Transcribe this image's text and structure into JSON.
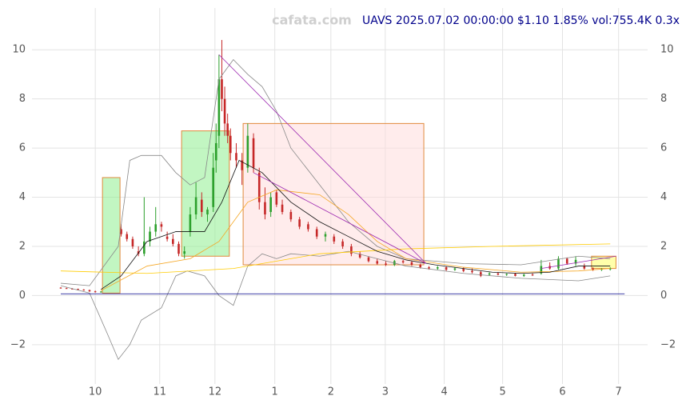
{
  "chart_data": {
    "type": "candlestick",
    "title": "UAVS 2025.07.02 00:00:00 $1.10 1.85% vol:755.4K 0.3x",
    "watermark": "cafata.com",
    "up_color": "#2ca02c",
    "down_color": "#c62828",
    "grid": true,
    "xlim": [
      -10,
      204
    ],
    "ylim": [
      -3.6,
      11.7
    ],
    "yticks": [
      {
        "value": -2,
        "label": "−2"
      },
      0,
      2,
      4,
      6,
      8,
      10
    ],
    "xticks": [
      {
        "value": 12,
        "label": "10"
      },
      {
        "value": 34.4,
        "label": "11"
      },
      {
        "value": 53.6,
        "label": "12"
      },
      {
        "value": 74.4,
        "label": "1"
      },
      {
        "value": 93.9,
        "label": "2"
      },
      {
        "value": 112.8,
        "label": "3"
      },
      {
        "value": 133.3,
        "label": "4"
      },
      {
        "value": 153.6,
        "label": "5"
      },
      {
        "value": 174.4,
        "label": "6"
      },
      {
        "value": 193.9,
        "label": "7"
      }
    ],
    "x": [
      0,
      2,
      4,
      6,
      8,
      10,
      12,
      14,
      21,
      23,
      25,
      27,
      29,
      31,
      33,
      35,
      37,
      39,
      41,
      43,
      45,
      47,
      49,
      51,
      53,
      54,
      55,
      56,
      57,
      58,
      59,
      61,
      63,
      65,
      67,
      69,
      71,
      73,
      75,
      77,
      80,
      83,
      86,
      89,
      92,
      95,
      98,
      101,
      104,
      107,
      110,
      113,
      116,
      119,
      122,
      125,
      128,
      131,
      134,
      137,
      140,
      143,
      146,
      149,
      152,
      155,
      158,
      161,
      164,
      167,
      170,
      173,
      176,
      179,
      182,
      185,
      188,
      191
    ],
    "open": [
      0.32,
      0.3,
      0.28,
      0.27,
      0.24,
      0.22,
      0.17,
      0.15,
      2.7,
      2.5,
      2.3,
      1.8,
      1.7,
      2.2,
      2.6,
      2.9,
      2.4,
      2.3,
      2.1,
      1.7,
      2.6,
      3.3,
      3.9,
      3.3,
      3.6,
      5.5,
      6.5,
      8.8,
      8.0,
      7.0,
      6.5,
      5.8,
      5.5,
      5.2,
      6.4,
      5.0,
      3.8,
      3.4,
      4.2,
      3.7,
      3.4,
      3.1,
      2.9,
      2.7,
      2.4,
      2.4,
      2.2,
      2.0,
      1.7,
      1.55,
      1.4,
      1.3,
      1.25,
      1.4,
      1.35,
      1.25,
      1.15,
      1.1,
      1.15,
      1.05,
      1.1,
      1.0,
      0.95,
      0.85,
      0.9,
      0.85,
      0.88,
      0.8,
      0.85,
      0.9,
      1.2,
      1.1,
      1.5,
      1.3,
      1.2,
      1.1,
      1.05,
      1.08
    ],
    "high": [
      0.34,
      0.32,
      0.3,
      0.28,
      0.26,
      0.24,
      0.2,
      0.18,
      2.9,
      2.6,
      2.4,
      2.0,
      4.0,
      2.8,
      3.6,
      3.0,
      2.6,
      2.5,
      2.2,
      2.0,
      3.6,
      4.6,
      4.2,
      3.6,
      5.8,
      7.0,
      9.8,
      10.4,
      8.5,
      7.4,
      6.8,
      6.2,
      5.8,
      7.0,
      6.6,
      5.2,
      4.4,
      4.2,
      4.3,
      3.9,
      3.5,
      3.2,
      3.0,
      2.8,
      2.6,
      2.5,
      2.3,
      2.1,
      1.8,
      1.6,
      1.5,
      1.4,
      1.45,
      1.45,
      1.4,
      1.3,
      1.2,
      1.2,
      1.2,
      1.15,
      1.15,
      1.1,
      1.0,
      0.95,
      0.95,
      0.9,
      0.92,
      0.88,
      0.9,
      1.45,
      1.35,
      1.6,
      1.55,
      1.6,
      1.3,
      1.15,
      1.12,
      1.15
    ],
    "low": [
      0.28,
      0.27,
      0.25,
      0.22,
      0.2,
      0.15,
      0.12,
      0.12,
      2.4,
      2.2,
      1.9,
      1.6,
      1.6,
      2.0,
      2.4,
      2.6,
      2.2,
      2.0,
      1.6,
      1.5,
      2.4,
      3.1,
      3.2,
      3.0,
      3.4,
      5.0,
      6.0,
      7.5,
      6.5,
      6.2,
      5.5,
      5.2,
      4.5,
      5.0,
      5.0,
      3.5,
      3.1,
      3.2,
      3.6,
      3.3,
      3.0,
      2.7,
      2.6,
      2.3,
      2.2,
      2.1,
      1.9,
      1.6,
      1.5,
      1.35,
      1.25,
      1.2,
      1.2,
      1.3,
      1.2,
      1.1,
      1.05,
      1.05,
      1.0,
      1.0,
      0.95,
      0.9,
      0.75,
      0.8,
      0.82,
      0.8,
      0.78,
      0.76,
      0.8,
      0.85,
      1.05,
      1.05,
      1.25,
      1.2,
      1.05,
      1.0,
      1.0,
      1.02
    ],
    "close": [
      0.3,
      0.28,
      0.27,
      0.24,
      0.22,
      0.17,
      0.15,
      0.16,
      2.5,
      2.3,
      2.0,
      1.7,
      2.2,
      2.6,
      2.9,
      2.8,
      2.3,
      2.1,
      1.7,
      1.8,
      3.3,
      4.0,
      3.4,
      3.5,
      5.2,
      6.2,
      8.8,
      8.0,
      7.0,
      6.5,
      5.8,
      5.5,
      5.1,
      6.5,
      5.2,
      3.8,
      3.3,
      4.0,
      3.7,
      3.4,
      3.1,
      2.8,
      2.7,
      2.4,
      2.5,
      2.2,
      2.0,
      1.7,
      1.55,
      1.4,
      1.3,
      1.25,
      1.4,
      1.35,
      1.25,
      1.15,
      1.1,
      1.15,
      1.05,
      1.1,
      1.0,
      0.95,
      0.8,
      0.9,
      0.85,
      0.88,
      0.8,
      0.85,
      0.82,
      1.2,
      1.1,
      1.5,
      1.3,
      1.45,
      1.1,
      1.05,
      1.08,
      1.1
    ],
    "overlays": [
      {
        "color": "#888888",
        "x": [
          0,
          10,
          20,
          24,
          28,
          35,
          40,
          45,
          50,
          55,
          60,
          65,
          70,
          75,
          80,
          90,
          100,
          110,
          120,
          140,
          160,
          180,
          191
        ],
        "values": [
          0.5,
          0.4,
          2.0,
          5.5,
          5.7,
          5.7,
          5.0,
          4.5,
          4.8,
          8.8,
          9.6,
          9.0,
          8.5,
          7.5,
          6.0,
          4.5,
          3.0,
          2.0,
          1.5,
          1.3,
          1.25,
          1.6,
          1.5
        ]
      },
      {
        "color": "#888888",
        "x": [
          0,
          10,
          16,
          20,
          24,
          28,
          35,
          40,
          44,
          50,
          55,
          60,
          65,
          70,
          75,
          80,
          90,
          100,
          110,
          120,
          140,
          160,
          180,
          191
        ],
        "values": [
          0.4,
          0.1,
          -1.5,
          -2.6,
          -2.0,
          -1.0,
          -0.5,
          0.8,
          1.0,
          0.8,
          0.0,
          -0.4,
          1.2,
          1.7,
          1.5,
          1.7,
          1.6,
          1.8,
          1.5,
          1.2,
          0.9,
          0.7,
          0.6,
          0.8
        ]
      },
      {
        "color": "#ffcc00",
        "x": [
          0,
          30,
          60,
          90,
          120,
          150,
          191
        ],
        "values": [
          1.0,
          0.9,
          1.1,
          1.7,
          1.9,
          2.0,
          2.1
        ]
      },
      {
        "color": "#f5a623",
        "x": [
          14,
          30,
          45,
          55,
          65,
          75,
          90,
          100,
          110,
          120,
          140,
          160,
          180,
          191
        ],
        "values": [
          0.2,
          1.2,
          1.5,
          2.2,
          3.8,
          4.3,
          4.1,
          3.3,
          2.2,
          1.5,
          1.15,
          0.95,
          1.0,
          1.1
        ]
      },
      {
        "color": "#111111",
        "x": [
          14,
          21,
          30,
          40,
          50,
          56,
          62,
          70,
          80,
          90,
          100,
          110,
          120,
          130,
          140,
          150,
          160,
          170,
          180,
          191
        ],
        "values": [
          0.25,
          0.8,
          2.2,
          2.6,
          2.6,
          3.8,
          5.5,
          5.0,
          3.8,
          3.0,
          2.4,
          1.8,
          1.45,
          1.25,
          1.1,
          0.95,
          0.9,
          0.95,
          1.2,
          1.2
        ]
      },
      {
        "color": "#9c27b0",
        "x": [
          55,
          127
        ],
        "values": [
          9.8,
          1.3
        ]
      },
      {
        "color": "#9c27b0",
        "x": [
          67,
          127
        ],
        "values": [
          5.0,
          1.3
        ]
      },
      {
        "color": "#9c27b0",
        "x": [
          167,
          193
        ],
        "values": [
          1.1,
          1.6
        ]
      },
      {
        "color": "#00008b",
        "x": [
          0,
          196
        ],
        "values": [
          0.07,
          0.07
        ]
      }
    ],
    "zones": [
      {
        "color": "#90ee90",
        "x0": 14.5,
        "x1": 20.6,
        "y0": 0.1,
        "y1": 4.8
      },
      {
        "color": "#90ee90",
        "x0": 42,
        "x1": 58.6,
        "y0": 1.6,
        "y1": 6.7
      },
      {
        "color": "#ffdcdc",
        "x0": 63.4,
        "x1": 126.2,
        "y0": 1.25,
        "y1": 7.0
      },
      {
        "color": "#ffff66",
        "x0": 184.5,
        "x1": 193,
        "y0": 1.1,
        "y1": 1.6
      }
    ]
  }
}
